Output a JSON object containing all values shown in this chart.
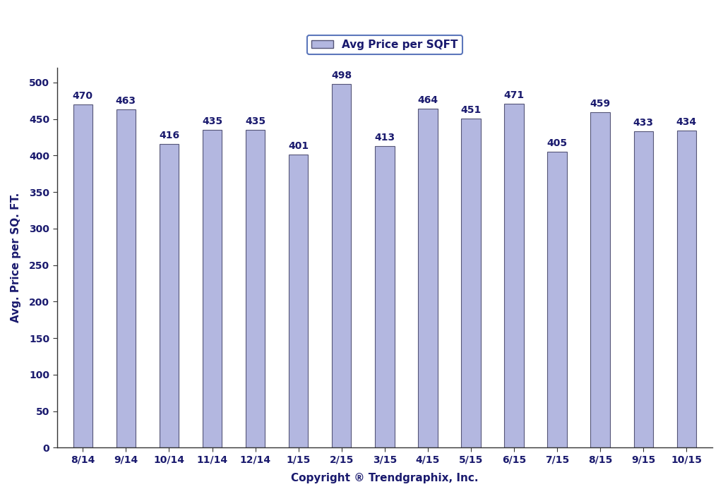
{
  "categories": [
    "8/14",
    "9/14",
    "10/14",
    "11/14",
    "12/14",
    "1/15",
    "2/15",
    "3/15",
    "4/15",
    "5/15",
    "6/15",
    "7/15",
    "8/15",
    "9/15",
    "10/15"
  ],
  "values": [
    470,
    463,
    416,
    435,
    435,
    401,
    498,
    413,
    464,
    451,
    471,
    405,
    459,
    433,
    434
  ],
  "bar_color": "#b3b7e0",
  "bar_edgecolor": "#555577",
  "ylabel": "Avg. Price per SQ. FT.",
  "xlabel": "Copyright ® Trendgraphix, Inc.",
  "legend_label": "Avg Price per SQFT",
  "ylim": [
    0,
    520
  ],
  "yticks": [
    0,
    50,
    100,
    150,
    200,
    250,
    300,
    350,
    400,
    450,
    500
  ],
  "axis_label_fontsize": 11,
  "tick_fontsize": 10,
  "value_fontsize": 10,
  "background_color": "#ffffff",
  "legend_facecolor": "#ffffff",
  "legend_edgecolor": "#3355aa",
  "text_color": "#1a1a6e",
  "bar_width": 0.45
}
